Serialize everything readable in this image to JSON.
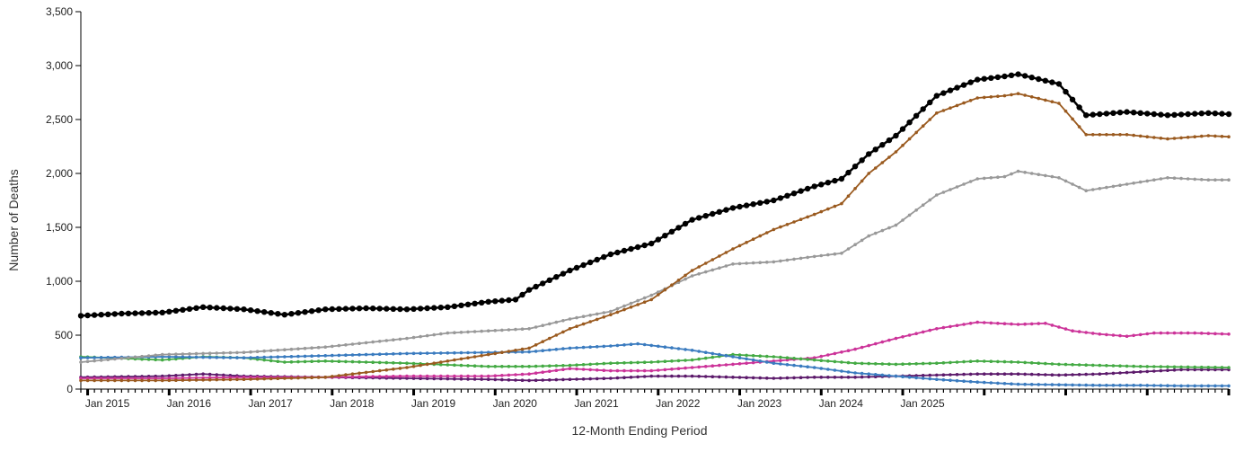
{
  "chart_data": {
    "type": "line",
    "title": "",
    "xlabel": "12-Month Ending Period",
    "ylabel": "Number of Deaths",
    "ylim": [
      0,
      3500
    ],
    "grid": false,
    "legend": "none",
    "y_ticks": [
      "0",
      "500",
      "1,000",
      "1,500",
      "2,000",
      "2,500",
      "3,000",
      "3,500"
    ],
    "x_ticks": [
      "Jan 2015",
      "Jan 2016",
      "Jan 2017",
      "Jan 2018",
      "Jan 2019",
      "Jan 2020",
      "Jan 2021",
      "Jan 2022",
      "Jan 2023",
      "Jan 2024",
      "Jan 2025"
    ],
    "x_start": "Dec 2014",
    "x_end": "Sep 2025",
    "series": [
      {
        "color": "#000000",
        "keyframes": [
          [
            0,
            680
          ],
          [
            6,
            700
          ],
          [
            12,
            710
          ],
          [
            18,
            760
          ],
          [
            24,
            740
          ],
          [
            30,
            690
          ],
          [
            36,
            740
          ],
          [
            42,
            750
          ],
          [
            48,
            740
          ],
          [
            54,
            760
          ],
          [
            60,
            810
          ],
          [
            64,
            830
          ],
          [
            66,
            920
          ],
          [
            72,
            1100
          ],
          [
            78,
            1250
          ],
          [
            84,
            1350
          ],
          [
            90,
            1570
          ],
          [
            96,
            1680
          ],
          [
            102,
            1750
          ],
          [
            108,
            1880
          ],
          [
            112,
            1950
          ],
          [
            116,
            2180
          ],
          [
            120,
            2350
          ],
          [
            126,
            2720
          ],
          [
            132,
            2870
          ],
          [
            136,
            2900
          ],
          [
            138,
            2920
          ],
          [
            144,
            2830
          ],
          [
            148,
            2540
          ],
          [
            154,
            2570
          ],
          [
            160,
            2540
          ],
          [
            166,
            2560
          ],
          [
            169,
            2550
          ]
        ]
      },
      {
        "color": "#9a5a1f",
        "keyframes": [
          [
            0,
            80
          ],
          [
            12,
            80
          ],
          [
            24,
            90
          ],
          [
            36,
            110
          ],
          [
            48,
            200
          ],
          [
            60,
            320
          ],
          [
            66,
            380
          ],
          [
            72,
            560
          ],
          [
            78,
            690
          ],
          [
            84,
            830
          ],
          [
            90,
            1100
          ],
          [
            96,
            1300
          ],
          [
            102,
            1480
          ],
          [
            108,
            1620
          ],
          [
            112,
            1720
          ],
          [
            116,
            2000
          ],
          [
            120,
            2200
          ],
          [
            126,
            2560
          ],
          [
            132,
            2700
          ],
          [
            136,
            2720
          ],
          [
            138,
            2740
          ],
          [
            144,
            2650
          ],
          [
            148,
            2360
          ],
          [
            154,
            2360
          ],
          [
            160,
            2320
          ],
          [
            166,
            2350
          ],
          [
            169,
            2340
          ]
        ]
      },
      {
        "color": "#999999",
        "keyframes": [
          [
            0,
            250
          ],
          [
            12,
            320
          ],
          [
            24,
            340
          ],
          [
            36,
            390
          ],
          [
            48,
            470
          ],
          [
            54,
            520
          ],
          [
            60,
            540
          ],
          [
            66,
            560
          ],
          [
            72,
            650
          ],
          [
            78,
            720
          ],
          [
            84,
            870
          ],
          [
            90,
            1050
          ],
          [
            96,
            1160
          ],
          [
            102,
            1180
          ],
          [
            108,
            1230
          ],
          [
            112,
            1260
          ],
          [
            116,
            1420
          ],
          [
            120,
            1520
          ],
          [
            126,
            1800
          ],
          [
            132,
            1950
          ],
          [
            136,
            1970
          ],
          [
            138,
            2020
          ],
          [
            144,
            1960
          ],
          [
            148,
            1840
          ],
          [
            154,
            1900
          ],
          [
            160,
            1960
          ],
          [
            166,
            1940
          ],
          [
            169,
            1940
          ]
        ]
      },
      {
        "color": "#3a7bbf",
        "keyframes": [
          [
            0,
            290
          ],
          [
            12,
            300
          ],
          [
            24,
            290
          ],
          [
            36,
            310
          ],
          [
            48,
            330
          ],
          [
            60,
            340
          ],
          [
            66,
            345
          ],
          [
            72,
            380
          ],
          [
            78,
            400
          ],
          [
            82,
            420
          ],
          [
            86,
            390
          ],
          [
            90,
            360
          ],
          [
            96,
            300
          ],
          [
            102,
            240
          ],
          [
            108,
            200
          ],
          [
            114,
            150
          ],
          [
            120,
            120
          ],
          [
            126,
            90
          ],
          [
            132,
            65
          ],
          [
            138,
            45
          ],
          [
            144,
            40
          ],
          [
            150,
            35
          ],
          [
            156,
            35
          ],
          [
            162,
            30
          ],
          [
            169,
            30
          ]
        ]
      },
      {
        "color": "#44aa44",
        "keyframes": [
          [
            0,
            300
          ],
          [
            12,
            270
          ],
          [
            18,
            300
          ],
          [
            24,
            290
          ],
          [
            30,
            250
          ],
          [
            36,
            260
          ],
          [
            48,
            240
          ],
          [
            60,
            210
          ],
          [
            66,
            210
          ],
          [
            72,
            220
          ],
          [
            78,
            240
          ],
          [
            84,
            250
          ],
          [
            90,
            270
          ],
          [
            96,
            320
          ],
          [
            102,
            300
          ],
          [
            108,
            270
          ],
          [
            114,
            240
          ],
          [
            120,
            230
          ],
          [
            126,
            240
          ],
          [
            132,
            260
          ],
          [
            138,
            250
          ],
          [
            144,
            230
          ],
          [
            150,
            220
          ],
          [
            156,
            210
          ],
          [
            162,
            205
          ],
          [
            169,
            200
          ]
        ]
      },
      {
        "color": "#cc3399",
        "keyframes": [
          [
            0,
            100
          ],
          [
            12,
            100
          ],
          [
            24,
            110
          ],
          [
            36,
            110
          ],
          [
            48,
            120
          ],
          [
            60,
            120
          ],
          [
            66,
            140
          ],
          [
            72,
            190
          ],
          [
            78,
            170
          ],
          [
            84,
            170
          ],
          [
            90,
            200
          ],
          [
            96,
            230
          ],
          [
            102,
            260
          ],
          [
            108,
            290
          ],
          [
            114,
            370
          ],
          [
            120,
            470
          ],
          [
            126,
            560
          ],
          [
            132,
            620
          ],
          [
            138,
            600
          ],
          [
            142,
            610
          ],
          [
            146,
            540
          ],
          [
            150,
            510
          ],
          [
            154,
            490
          ],
          [
            158,
            520
          ],
          [
            164,
            520
          ],
          [
            169,
            510
          ]
        ]
      },
      {
        "color": "#5c1a6b",
        "keyframes": [
          [
            0,
            110
          ],
          [
            12,
            120
          ],
          [
            18,
            140
          ],
          [
            24,
            120
          ],
          [
            36,
            110
          ],
          [
            48,
            100
          ],
          [
            60,
            90
          ],
          [
            66,
            80
          ],
          [
            72,
            90
          ],
          [
            78,
            100
          ],
          [
            84,
            120
          ],
          [
            90,
            120
          ],
          [
            96,
            110
          ],
          [
            102,
            100
          ],
          [
            108,
            110
          ],
          [
            114,
            110
          ],
          [
            120,
            120
          ],
          [
            126,
            130
          ],
          [
            132,
            140
          ],
          [
            138,
            140
          ],
          [
            144,
            130
          ],
          [
            150,
            140
          ],
          [
            156,
            160
          ],
          [
            162,
            180
          ],
          [
            169,
            180
          ]
        ]
      }
    ]
  }
}
